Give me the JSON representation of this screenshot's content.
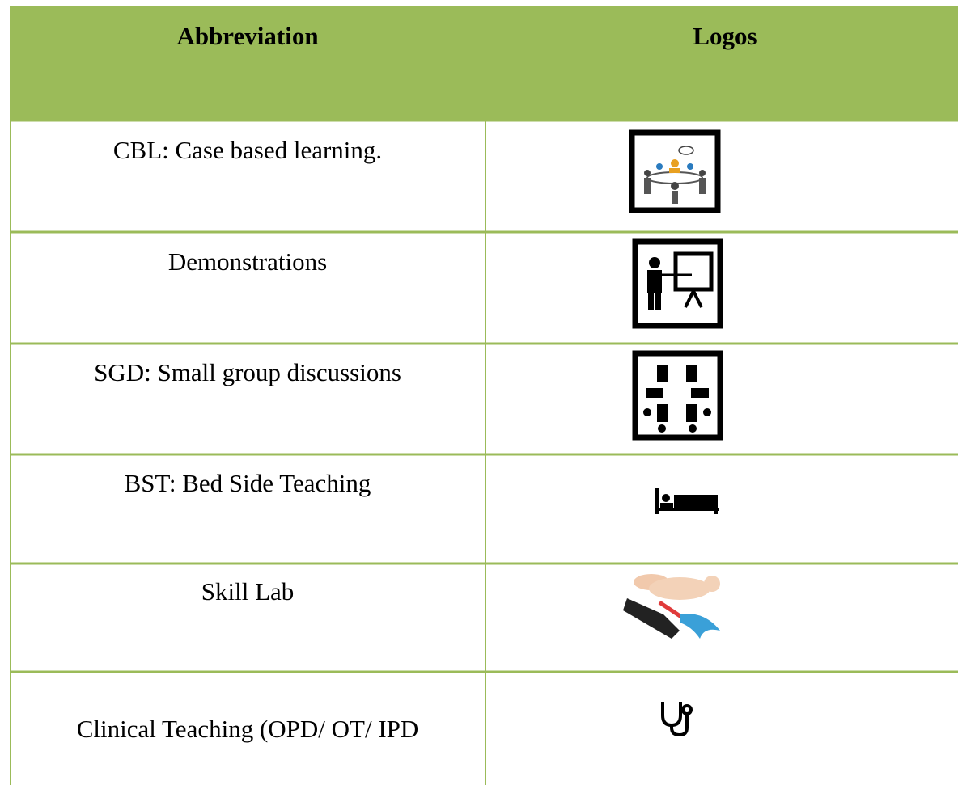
{
  "table": {
    "header": [
      "Abbreviation",
      "Logos"
    ],
    "rows": [
      [
        "CBL: Case based learning."
      ],
      [
        "Demonstrations"
      ],
      [
        "SGD: Small group discussions"
      ],
      [
        "BST: Bed Side Teaching"
      ],
      [
        "Skill Lab"
      ],
      [
        "Clinical Teaching (OPD/ OT/ IPD"
      ]
    ]
  }
}
